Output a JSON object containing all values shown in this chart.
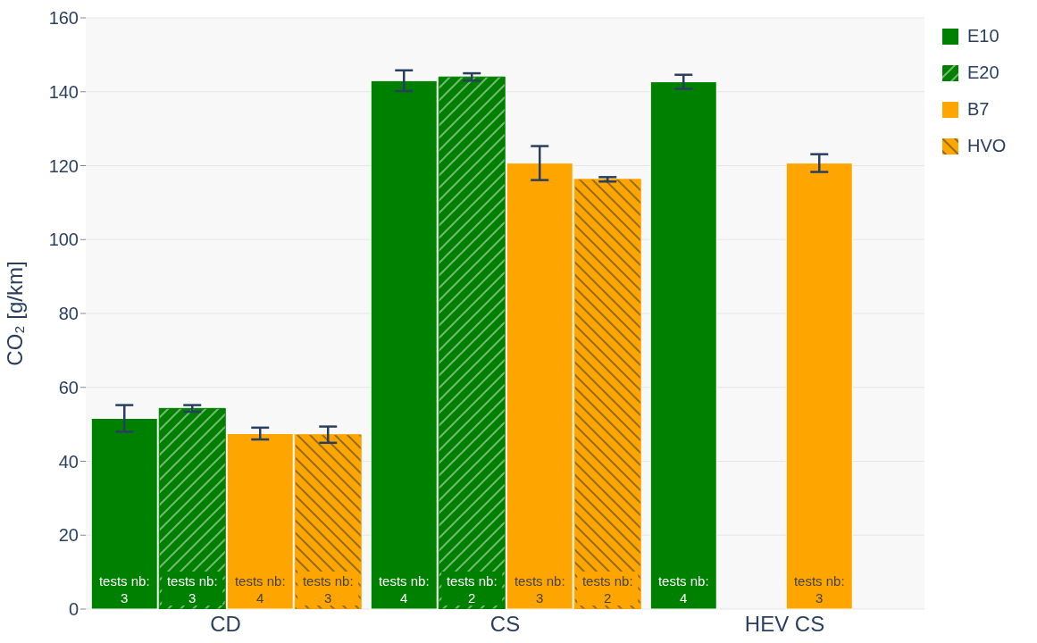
{
  "chart_data": {
    "type": "bar",
    "ylabel": "CO₂ [g/km]",
    "categories": [
      "CD",
      "CS",
      "HEV CS"
    ],
    "series": [
      {
        "name": "E10",
        "color": "#008000",
        "values": [
          51.6,
          143,
          142.7
        ],
        "errors": [
          3.6,
          2.8,
          1.9
        ]
      },
      {
        "name": "E20",
        "color": "#008000",
        "values": [
          54.3,
          144,
          null
        ],
        "errors": [
          0.9,
          1,
          null
        ]
      },
      {
        "name": "B7",
        "color": "#ffa500",
        "values": [
          47.5,
          120.7,
          120.7
        ],
        "errors": [
          1.6,
          4.6,
          2.4
        ]
      },
      {
        "name": "HVO",
        "color": "#ffa500",
        "values": [
          47.2,
          116.3,
          null
        ],
        "errors": [
          2.2,
          0.6,
          null
        ]
      }
    ],
    "annotations": [
      "tests nb: 3",
      "tests nb: 3",
      "tests nb: 4",
      "tests nb: 3",
      "tests nb: 4",
      "tests nb: 2",
      "tests nb: 3",
      "tests nb: 2",
      "tests nb: 4",
      "tests nb: 3"
    ],
    "ylim": [
      0,
      160
    ],
    "yticks": [
      0,
      20,
      40,
      60,
      80,
      100,
      120,
      140,
      160
    ],
    "grid": "y",
    "legend": "top right"
  }
}
